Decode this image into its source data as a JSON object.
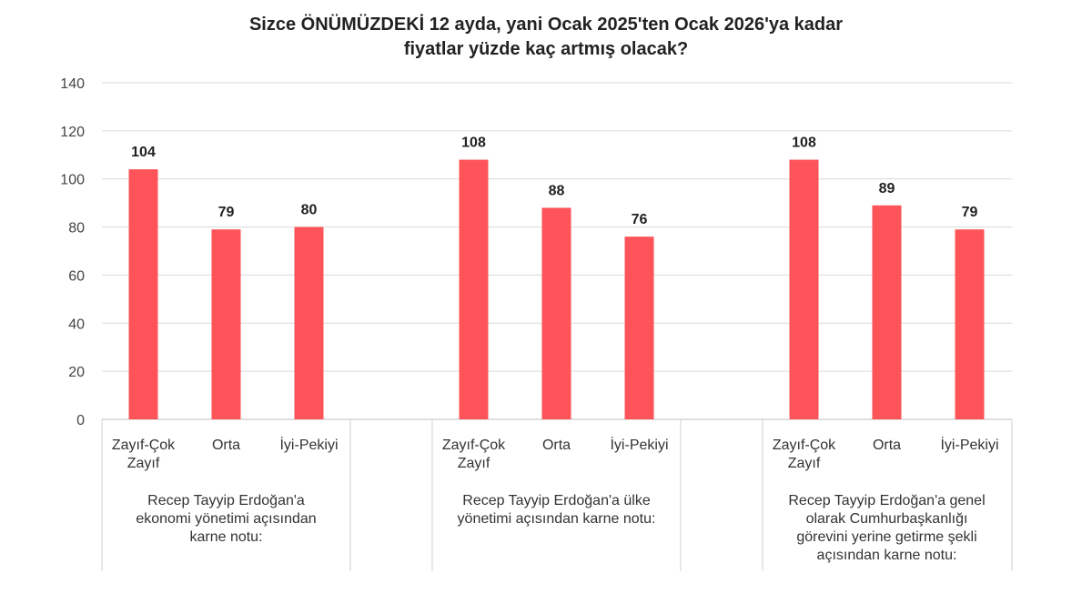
{
  "chart_data": {
    "type": "bar",
    "title_lines": [
      "Sizce ÖNÜMÜZDEKİ 12 ayda, yani Ocak 2025'ten Ocak 2026'ya kadar",
      "fiyatlar yüzde kaç artmış olacak?"
    ],
    "ylim": [
      0,
      140
    ],
    "yticks": [
      0,
      20,
      40,
      60,
      80,
      100,
      120,
      140
    ],
    "grid": true,
    "bar_color": "#fe5459",
    "groups": [
      {
        "label_lines": [
          "Recep Tayyip Erdoğan'a",
          "ekonomi yönetimi açısından",
          "karne notu:"
        ],
        "categories": [
          [
            "Zayıf-Çok",
            "Zayıf"
          ],
          [
            "Orta"
          ],
          [
            "İyi-Pekiyi"
          ]
        ],
        "values": [
          104,
          79,
          80
        ]
      },
      {
        "label_lines": [
          "Recep Tayyip Erdoğan'a ülke",
          "yönetimi açısından karne notu:"
        ],
        "categories": [
          [
            "Zayıf-Çok",
            "Zayıf"
          ],
          [
            "Orta"
          ],
          [
            "İyi-Pekiyi"
          ]
        ],
        "values": [
          108,
          88,
          76
        ]
      },
      {
        "label_lines": [
          "Recep Tayyip Erdoğan'a genel",
          "olarak Cumhurbaşkanlığı",
          "görevini yerine getirme şekli",
          "açısından karne notu:"
        ],
        "categories": [
          [
            "Zayıf-Çok",
            "Zayıf"
          ],
          [
            "Orta"
          ],
          [
            "İyi-Pekiyi"
          ]
        ],
        "values": [
          108,
          89,
          79
        ]
      }
    ]
  }
}
